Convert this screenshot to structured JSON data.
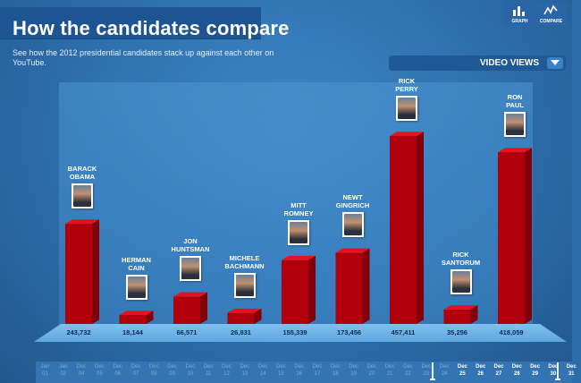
{
  "header": {
    "title": "How the candidates compare",
    "subtitle": "See how the 2012 presidential candidates stack up against each other on YouTube."
  },
  "toolbar": {
    "graph_label": "GRAPH",
    "compare_label": "COMPARE"
  },
  "metric_dropdown": {
    "selected": "VIDEO VIEWS"
  },
  "colors": {
    "bar": "#b0000c",
    "bar_top": "#e4141f",
    "bar_side": "#7e0008",
    "background": "#2b6cab"
  },
  "chart_data": {
    "type": "bar",
    "title": "",
    "categories": [
      "BARACK OBAMA",
      "HERMAN CAIN",
      "JON HUNTSMAN",
      "MICHELE BACHMANN",
      "MITT ROMNEY",
      "NEWT GINGRICH",
      "RICK PERRY",
      "RICK SANTORUM",
      "RON PAUL"
    ],
    "names": [
      "BARACK\nOBAMA",
      "HERMAN\nCAIN",
      "JON\nHUNTSMAN",
      "MICHELE\nBACHMANN",
      "MITT\nROMNEY",
      "NEWT\nGINGRICH",
      "RICK\nPERRY",
      "RICK\nSANTORUM",
      "RON\nPAUL"
    ],
    "values": [
      243732,
      18144,
      66571,
      26831,
      155339,
      173456,
      457411,
      35256,
      418059
    ],
    "value_labels": [
      "243,732",
      "18,144",
      "66,571",
      "26,831",
      "155,339",
      "173,456",
      "457,411",
      "35,256",
      "418,059"
    ],
    "ylim": [
      0,
      457411
    ],
    "grid": false,
    "legend": "none"
  },
  "timeline": {
    "ticks": [
      {
        "month": "Jan",
        "day": "01",
        "active": false
      },
      {
        "month": "Jan",
        "day": "02",
        "active": false
      },
      {
        "month": "Dec",
        "day": "04",
        "active": false
      },
      {
        "month": "Dec",
        "day": "05",
        "active": false
      },
      {
        "month": "Dec",
        "day": "06",
        "active": false
      },
      {
        "month": "Dec",
        "day": "07",
        "active": false
      },
      {
        "month": "Dec",
        "day": "08",
        "active": false
      },
      {
        "month": "Dec",
        "day": "09",
        "active": false
      },
      {
        "month": "Dec",
        "day": "10",
        "active": false
      },
      {
        "month": "Dec",
        "day": "11",
        "active": false
      },
      {
        "month": "Dec",
        "day": "12",
        "active": false
      },
      {
        "month": "Dec",
        "day": "13",
        "active": false
      },
      {
        "month": "Dec",
        "day": "14",
        "active": false
      },
      {
        "month": "Dec",
        "day": "15",
        "active": false
      },
      {
        "month": "Dec",
        "day": "16",
        "active": false
      },
      {
        "month": "Dec",
        "day": "17",
        "active": false
      },
      {
        "month": "Dec",
        "day": "18",
        "active": false
      },
      {
        "month": "Dec",
        "day": "19",
        "active": false
      },
      {
        "month": "Dec",
        "day": "20",
        "active": false
      },
      {
        "month": "Dec",
        "day": "21",
        "active": false
      },
      {
        "month": "Dec",
        "day": "22",
        "active": false
      },
      {
        "month": "Dec",
        "day": "23",
        "active": false
      },
      {
        "month": "Dec",
        "day": "24",
        "active": false
      },
      {
        "month": "Dec",
        "day": "25",
        "active": true
      },
      {
        "month": "Dec",
        "day": "26",
        "active": true
      },
      {
        "month": "Dec",
        "day": "27",
        "active": true
      },
      {
        "month": "Dec",
        "day": "28",
        "active": true
      },
      {
        "month": "Dec",
        "day": "29",
        "active": true
      },
      {
        "month": "Dec",
        "day": "30",
        "active": true
      },
      {
        "month": "Dec",
        "day": "31",
        "active": true
      }
    ]
  }
}
